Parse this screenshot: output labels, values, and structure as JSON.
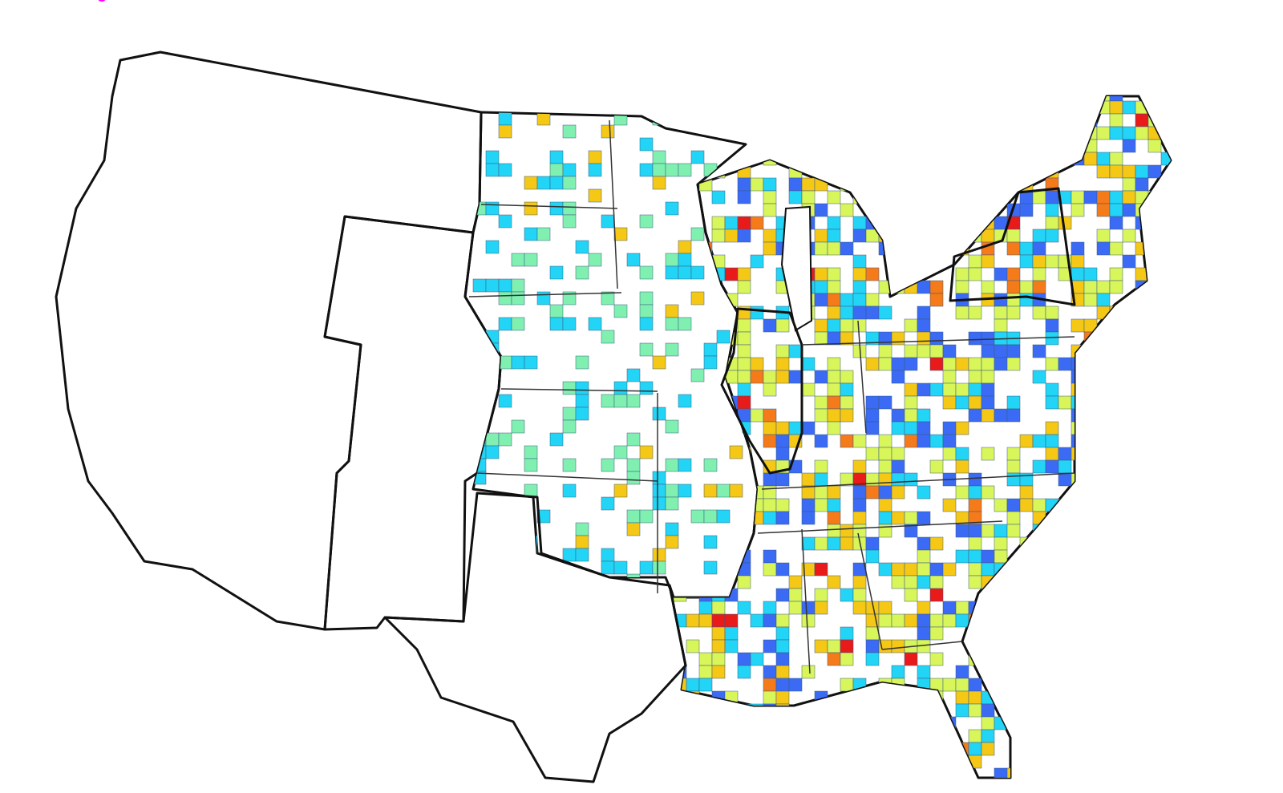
{
  "map": {
    "type": "county choropleth",
    "colors": {
      "excluded_states": "#ff00ff",
      "low": "#3b6af5",
      "low_mid": "#22d4f5",
      "mid": "#7ff0b0",
      "mid_high": "#d8f55a",
      "high": "#f5c816",
      "very_high": "#f57a1a",
      "max": "#e81a1a",
      "no_data": "#ffffff",
      "border": "#111111"
    },
    "excluded_regions": [
      "west",
      "texas",
      "illinois",
      "new-york"
    ]
  }
}
